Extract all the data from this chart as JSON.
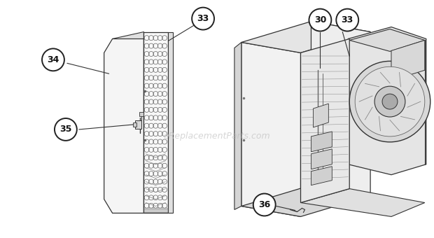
{
  "background_color": "#ffffff",
  "line_color": "#333333",
  "light_gray": "#e8e8e8",
  "mid_gray": "#d0d0d0",
  "dark_gray": "#aaaaaa",
  "circle_fill": "#ffffff",
  "circle_edge": "#222222",
  "watermark_color": "#bbbbbb",
  "watermark_text": "eReplacementParts.com",
  "figsize": [
    6.2,
    3.4
  ],
  "dpi": 100
}
